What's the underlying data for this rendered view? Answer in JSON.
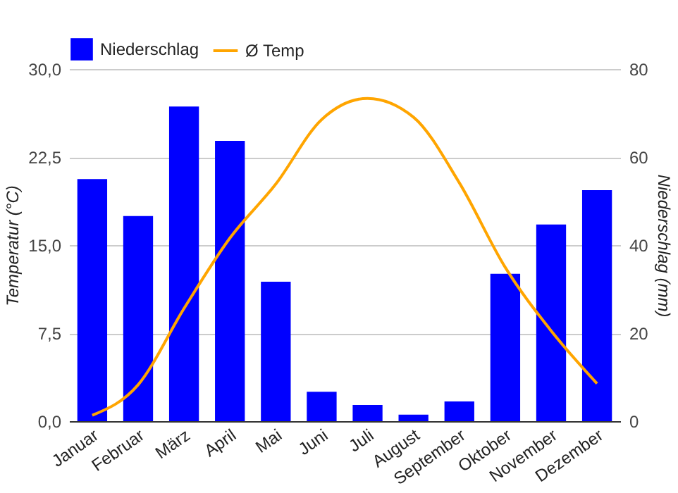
{
  "chart_data": {
    "type": "bar",
    "categories": [
      "Januar",
      "Februar",
      "März",
      "April",
      "Mai",
      "Juni",
      "Juli",
      "August",
      "September",
      "Oktober",
      "November",
      "Dezember"
    ],
    "series": [
      {
        "name": "Niederschlag",
        "axis": "y2",
        "color": "#0000ff",
        "values": [
          55,
          46.6,
          71.5,
          63.7,
          31.7,
          6.7,
          3.7,
          1.5,
          4.5,
          33.5,
          44.7,
          52.5
        ]
      },
      {
        "name": "Ø Temp",
        "type": "line",
        "color": "#ffa500",
        "values": [
          0.5,
          3.1,
          9.6,
          15.6,
          20.2,
          25.7,
          27.5,
          25.9,
          20.3,
          13.1,
          7.7,
          3.2
        ]
      }
    ],
    "ylabel": "Temperatur (°C)",
    "y2label": "Niederschlag (mm)",
    "ylim": [
      0,
      30
    ],
    "yticks": [
      {
        "value": 0,
        "label": "0,0"
      },
      {
        "value": 7.5,
        "label": "7,5"
      },
      {
        "value": 15,
        "label": "15,0"
      },
      {
        "value": 22.5,
        "label": "22,5"
      },
      {
        "value": 30,
        "label": "30,0"
      }
    ],
    "y2lim": [
      0,
      80
    ],
    "y2ticks": [
      0,
      20,
      40,
      60,
      80
    ],
    "grid": "y",
    "legend": "top left"
  }
}
